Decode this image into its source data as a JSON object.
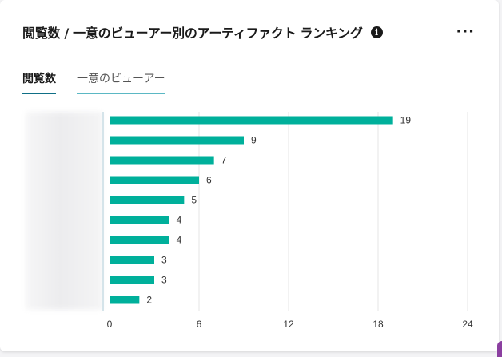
{
  "header": {
    "title": "閲覧数 / 一意のビューアー別のアーティファクト ランキング",
    "info_icon": "info-icon",
    "more_label": "···"
  },
  "tabs": [
    {
      "label": "閲覧数",
      "active": true
    },
    {
      "label": "一意のビューアー",
      "active": false
    }
  ],
  "colors": {
    "bar": "#00b09b",
    "grid": "#e6e6e6",
    "axis": "#d5e4ea",
    "tab_active_underline": "#0f6f86"
  },
  "chart_data": {
    "type": "bar",
    "orientation": "horizontal",
    "values": [
      19,
      9,
      7,
      6,
      5,
      4,
      4,
      3,
      3,
      2
    ],
    "x_ticks": [
      0,
      6,
      12,
      18,
      24
    ],
    "xlim": [
      0,
      24
    ],
    "grid": true,
    "category_labels_obscured": true
  }
}
